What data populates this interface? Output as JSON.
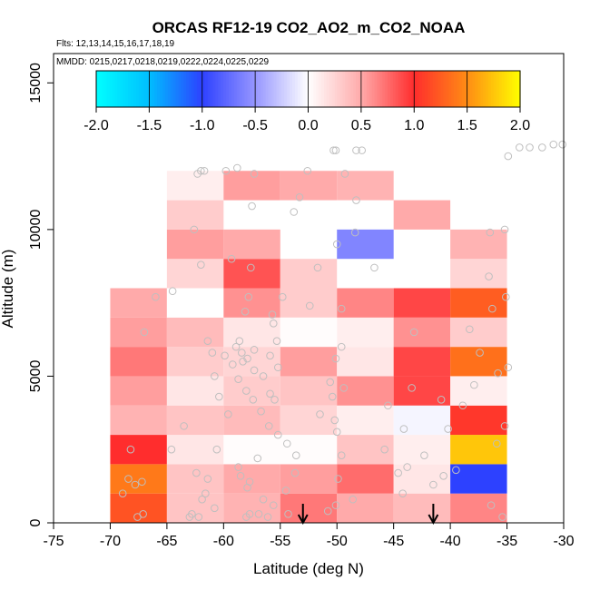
{
  "chart_data": {
    "type": "heatmap",
    "title": "ORCAS RF12-19 CO2_AO2_m_CO2_NOAA",
    "flights_label": "Flts: 12,13,14,15,16,17,18,19",
    "dates_label": "MMDD: 0215,0217,0218,0219,0222,0224,0225,0229",
    "xlabel": "Latitude (deg N)",
    "ylabel": "Altitude (m)",
    "xlim": [
      -75,
      -30
    ],
    "ylim": [
      0,
      16000
    ],
    "x_ticks": [
      -75,
      -70,
      -65,
      -60,
      -55,
      -50,
      -45,
      -40,
      -35,
      -30
    ],
    "x_tick_labels": [
      "-75",
      "-70",
      "-65",
      "-60",
      "-55",
      "-50",
      "-45",
      "-40",
      "-35",
      "-30"
    ],
    "y_ticks": [
      0,
      5000,
      10000,
      15000
    ],
    "y_tick_labels": [
      "0",
      "5000",
      "10000",
      "15000"
    ],
    "colorbar": {
      "range": [
        -2.0,
        2.0
      ],
      "ticks": [
        -2.0,
        -1.5,
        -1.0,
        -0.5,
        0.0,
        0.5,
        1.0,
        1.5,
        2.0
      ],
      "tick_labels": [
        "-2.0",
        "-1.5",
        "-1.0",
        "-0.5",
        "0.0",
        "0.5",
        "1.0",
        "1.5",
        "2.0"
      ]
    },
    "bin_width_deg": 5,
    "bin_height_m": 1000,
    "cells": [
      {
        "lat0": -70,
        "alt0": 0,
        "value": 1.2
      },
      {
        "lat0": -65,
        "alt0": 0,
        "value": 0.35
      },
      {
        "lat0": -60,
        "alt0": 0,
        "value": 0.45
      },
      {
        "lat0": -55,
        "alt0": 0,
        "value": 0.7
      },
      {
        "lat0": -50,
        "alt0": 0,
        "value": 0.5
      },
      {
        "lat0": -45,
        "alt0": 0,
        "value": 0.4
      },
      {
        "lat0": -40,
        "alt0": 0,
        "value": 0.65
      },
      {
        "lat0": -70,
        "alt0": 1000,
        "value": 1.4
      },
      {
        "lat0": -65,
        "alt0": 1000,
        "value": 0.35
      },
      {
        "lat0": -60,
        "alt0": 1000,
        "value": 0.5
      },
      {
        "lat0": -55,
        "alt0": 1000,
        "value": 0.55
      },
      {
        "lat0": -50,
        "alt0": 1000,
        "value": 0.75
      },
      {
        "lat0": -45,
        "alt0": 1000,
        "value": 0.15
      },
      {
        "lat0": -40,
        "alt0": 1000,
        "value": -1.0
      },
      {
        "lat0": -70,
        "alt0": 2000,
        "value": 1.0
      },
      {
        "lat0": -65,
        "alt0": 2000,
        "value": 0.15
      },
      {
        "lat0": -60,
        "alt0": 2000,
        "value": 0.02
      },
      {
        "lat0": -55,
        "alt0": 2000,
        "value": 0.02
      },
      {
        "lat0": -50,
        "alt0": 2000,
        "value": 0.35
      },
      {
        "lat0": -45,
        "alt0": 2000,
        "value": 0.1
      },
      {
        "lat0": -40,
        "alt0": 2000,
        "value": 1.75
      },
      {
        "lat0": -70,
        "alt0": 3000,
        "value": 0.45
      },
      {
        "lat0": -65,
        "alt0": 3000,
        "value": 0.35
      },
      {
        "lat0": -60,
        "alt0": 3000,
        "value": 0.4
      },
      {
        "lat0": -55,
        "alt0": 3000,
        "value": 0.25
      },
      {
        "lat0": -50,
        "alt0": 3000,
        "value": 0.1
      },
      {
        "lat0": -45,
        "alt0": 3000,
        "value": -0.05
      },
      {
        "lat0": -40,
        "alt0": 3000,
        "value": 1.05
      },
      {
        "lat0": -70,
        "alt0": 4000,
        "value": 0.55
      },
      {
        "lat0": -65,
        "alt0": 4000,
        "value": 0.15
      },
      {
        "lat0": -60,
        "alt0": 4000,
        "value": 0.3
      },
      {
        "lat0": -55,
        "alt0": 4000,
        "value": 0.35
      },
      {
        "lat0": -50,
        "alt0": 4000,
        "value": 0.6
      },
      {
        "lat0": -45,
        "alt0": 4000,
        "value": 0.9
      },
      {
        "lat0": -40,
        "alt0": 4000,
        "value": 0.1
      },
      {
        "lat0": -70,
        "alt0": 5000,
        "value": 0.7
      },
      {
        "lat0": -65,
        "alt0": 5000,
        "value": 0.3
      },
      {
        "lat0": -60,
        "alt0": 5000,
        "value": 0.25
      },
      {
        "lat0": -55,
        "alt0": 5000,
        "value": 0.55
      },
      {
        "lat0": -50,
        "alt0": 5000,
        "value": 0.15
      },
      {
        "lat0": -45,
        "alt0": 5000,
        "value": 0.9
      },
      {
        "lat0": -40,
        "alt0": 5000,
        "value": 1.35
      },
      {
        "lat0": -70,
        "alt0": 6000,
        "value": 0.55
      },
      {
        "lat0": -65,
        "alt0": 6000,
        "value": 0.4
      },
      {
        "lat0": -60,
        "alt0": 6000,
        "value": 0.15
      },
      {
        "lat0": -55,
        "alt0": 6000,
        "value": 0.02
      },
      {
        "lat0": -50,
        "alt0": 6000,
        "value": 0.1
      },
      {
        "lat0": -45,
        "alt0": 6000,
        "value": 0.6
      },
      {
        "lat0": -40,
        "alt0": 6000,
        "value": 0.3
      },
      {
        "lat0": -70,
        "alt0": 7000,
        "value": 0.5
      },
      {
        "lat0": -65,
        "alt0": 7000,
        "value": 0.0
      },
      {
        "lat0": -60,
        "alt0": 7000,
        "value": 0.6
      },
      {
        "lat0": -55,
        "alt0": 7000,
        "value": 0.3
      },
      {
        "lat0": -50,
        "alt0": 7000,
        "value": 0.65
      },
      {
        "lat0": -45,
        "alt0": 7000,
        "value": 0.9
      },
      {
        "lat0": -40,
        "alt0": 7000,
        "value": 1.25
      },
      {
        "lat0": -65,
        "alt0": 8000,
        "value": 0.25
      },
      {
        "lat0": -60,
        "alt0": 8000,
        "value": 0.85
      },
      {
        "lat0": -55,
        "alt0": 8000,
        "value": 0.3
      },
      {
        "lat0": -40,
        "alt0": 8000,
        "value": 0.25
      },
      {
        "lat0": -65,
        "alt0": 9000,
        "value": 0.55
      },
      {
        "lat0": -60,
        "alt0": 9000,
        "value": 0.5
      },
      {
        "lat0": -50,
        "alt0": 9000,
        "value": -0.6
      },
      {
        "lat0": -40,
        "alt0": 9000,
        "value": 0.45
      },
      {
        "lat0": -65,
        "alt0": 10000,
        "value": 0.3
      },
      {
        "lat0": -45,
        "alt0": 10000,
        "value": 0.5
      },
      {
        "lat0": -65,
        "alt0": 11000,
        "value": 0.1
      },
      {
        "lat0": -60,
        "alt0": 11000,
        "value": 0.55
      },
      {
        "lat0": -55,
        "alt0": 11000,
        "value": 0.5
      },
      {
        "lat0": -50,
        "alt0": 11000,
        "value": 0.45
      }
    ],
    "profile_points": [
      [
        -67.1,
        300
      ],
      [
        -67.6,
        200
      ],
      [
        -68.9,
        1000
      ],
      [
        -68.4,
        1500
      ],
      [
        -67.8,
        1300
      ],
      [
        -67.2,
        1400
      ],
      [
        -68.2,
        2500
      ],
      [
        -67.0,
        6500
      ],
      [
        -66.0,
        7700
      ],
      [
        -64.5,
        7900
      ],
      [
        -63.5,
        3300
      ],
      [
        -64.6,
        2500
      ],
      [
        -62.4,
        1700
      ],
      [
        -61.4,
        1500
      ],
      [
        -61.6,
        1000
      ],
      [
        -61.9,
        800
      ],
      [
        -62.8,
        300
      ],
      [
        -63.0,
        200
      ],
      [
        -62.2,
        200
      ],
      [
        -60.8,
        500
      ],
      [
        -60.6,
        2500
      ],
      [
        -59.6,
        3700
      ],
      [
        -60.4,
        4300
      ],
      [
        -60.8,
        5000
      ],
      [
        -61.0,
        5800
      ],
      [
        -61.4,
        6200
      ],
      [
        -62.0,
        8800
      ],
      [
        -62.6,
        10000
      ],
      [
        -62.3,
        11900
      ],
      [
        -62.0,
        12000
      ],
      [
        -61.7,
        12000
      ],
      [
        -59.8,
        12000
      ],
      [
        -58.8,
        12100
      ],
      [
        -57.3,
        11900
      ],
      [
        -57.5,
        10800
      ],
      [
        -57.6,
        8700
      ],
      [
        -57.8,
        7700
      ],
      [
        -58.1,
        7200
      ],
      [
        -58.6,
        6200
      ],
      [
        -58.9,
        6000
      ],
      [
        -58.4,
        5800
      ],
      [
        -57.9,
        5600
      ],
      [
        -57.3,
        5200
      ],
      [
        -56.5,
        5000
      ],
      [
        -55.9,
        4400
      ],
      [
        -55.5,
        4200
      ],
      [
        -55.2,
        5300
      ],
      [
        -55.9,
        5700
      ],
      [
        -57.3,
        5900
      ],
      [
        -58.3,
        5500
      ],
      [
        -59.2,
        5400
      ],
      [
        -59.9,
        5700
      ],
      [
        -58.7,
        4900
      ],
      [
        -58.0,
        4500
      ],
      [
        -57.4,
        4200
      ],
      [
        -56.7,
        3800
      ],
      [
        -56.0,
        3300
      ],
      [
        -55.2,
        3000
      ],
      [
        -54.4,
        2700
      ],
      [
        -53.6,
        2300
      ],
      [
        -57.0,
        2200
      ],
      [
        -58.7,
        1900
      ],
      [
        -58.5,
        1600
      ],
      [
        -57.7,
        1400
      ],
      [
        -57.9,
        1200
      ],
      [
        -56.5,
        800
      ],
      [
        -55.6,
        600
      ],
      [
        -56.9,
        300
      ],
      [
        -57.7,
        300
      ],
      [
        -58.0,
        200
      ],
      [
        -56.1,
        200
      ],
      [
        -54.3,
        300
      ],
      [
        -54.5,
        1100
      ],
      [
        -53.7,
        1700
      ],
      [
        -55.3,
        6200
      ],
      [
        -55.6,
        6800
      ],
      [
        -55.7,
        7100
      ],
      [
        -54.8,
        7700
      ],
      [
        -52.4,
        7400
      ],
      [
        -53.8,
        10600
      ],
      [
        -53.3,
        11100
      ],
      [
        -52.6,
        12000
      ],
      [
        -50.3,
        12700
      ],
      [
        -50.1,
        12700
      ],
      [
        -48.3,
        12700
      ],
      [
        -47.8,
        12700
      ],
      [
        -49.3,
        11900
      ],
      [
        -48.3,
        11000
      ],
      [
        -48.4,
        9900
      ],
      [
        -50.0,
        9500
      ],
      [
        -46.7,
        8700
      ],
      [
        -49.6,
        7300
      ],
      [
        -49.6,
        6000
      ],
      [
        -50.1,
        5600
      ],
      [
        -50.6,
        4800
      ],
      [
        -49.4,
        4600
      ],
      [
        -50.4,
        4300
      ],
      [
        -51.5,
        3700
      ],
      [
        -50.2,
        3500
      ],
      [
        -50.0,
        3100
      ],
      [
        -49.6,
        2300
      ],
      [
        -49.9,
        1500
      ],
      [
        -50.1,
        600
      ],
      [
        -50.8,
        400
      ],
      [
        -48.6,
        800
      ],
      [
        -45.5,
        4000
      ],
      [
        -43.4,
        4600
      ],
      [
        -44.1,
        3200
      ],
      [
        -45.8,
        2500
      ],
      [
        -44.6,
        1700
      ],
      [
        -44.2,
        1000
      ],
      [
        -43.8,
        1900
      ],
      [
        -42.3,
        2300
      ],
      [
        -41.5,
        1300
      ],
      [
        -40.6,
        1600
      ],
      [
        -39.5,
        1800
      ],
      [
        -40.2,
        3200
      ],
      [
        -40.8,
        4200
      ],
      [
        -38.9,
        4000
      ],
      [
        -37.9,
        4700
      ],
      [
        -37.4,
        5800
      ],
      [
        -38.3,
        6600
      ],
      [
        -36.3,
        7300
      ],
      [
        -35.1,
        7700
      ],
      [
        -36.6,
        8400
      ],
      [
        -36.5,
        9900
      ],
      [
        -35.2,
        10000
      ],
      [
        -36.4,
        600
      ],
      [
        -35.4,
        200
      ],
      [
        -35.9,
        2700
      ],
      [
        -35.2,
        3300
      ],
      [
        -34.9,
        5300
      ],
      [
        -35.8,
        5100
      ],
      [
        -34.9,
        12500
      ],
      [
        -33.9,
        12800
      ],
      [
        -33.0,
        12800
      ],
      [
        -31.9,
        12800
      ],
      [
        -30.9,
        12900
      ],
      [
        -30.1,
        12900
      ],
      [
        -43.2,
        6500
      ],
      [
        -51.7,
        8700
      ],
      [
        -59.3,
        9000
      ]
    ],
    "arrows": [
      {
        "lat": -53.0
      },
      {
        "lat": -41.5
      }
    ]
  }
}
